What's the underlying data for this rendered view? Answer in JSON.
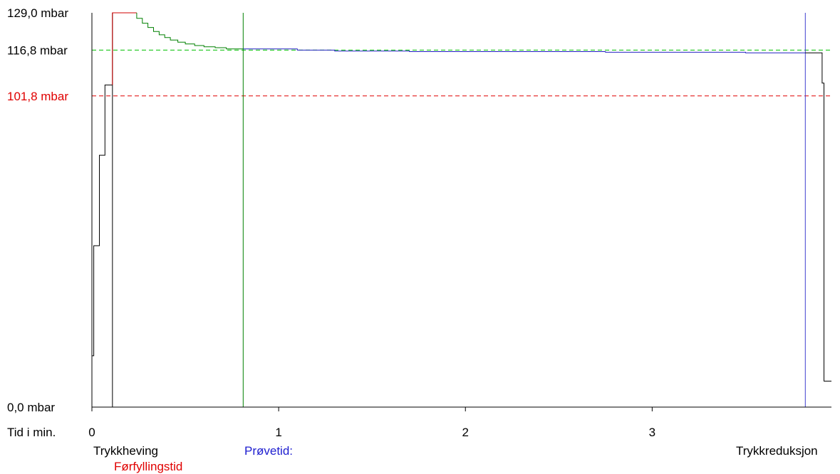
{
  "chart_data": {
    "type": "line",
    "y_axis": {
      "ticks": [
        {
          "value": 129.0,
          "label": "129,0 mbar",
          "color": "#000000"
        },
        {
          "value": 116.8,
          "label": "116,8 mbar",
          "color": "#000000"
        },
        {
          "value": 101.8,
          "label": "101,8 mbar",
          "color": "#e00000"
        },
        {
          "value": 0.0,
          "label": "0,0 mbar",
          "color": "#000000"
        }
      ],
      "range": [
        0,
        129.0
      ]
    },
    "x_axis": {
      "label": "Tid i min.",
      "ticks": [
        {
          "value": 0,
          "label": "0"
        },
        {
          "value": 1,
          "label": "1"
        },
        {
          "value": 2,
          "label": "2"
        },
        {
          "value": 3,
          "label": "3"
        }
      ],
      "range": [
        0,
        3.96
      ]
    },
    "phase_labels": {
      "trykkheving": "Trykkheving",
      "forfyllingstid": "Førfyllingstid",
      "provetid": "Prøvetid:",
      "trykkreduksjon": "Trykkreduksjon"
    },
    "reference_lines": [
      {
        "value": 116.8,
        "color": "#00c000"
      },
      {
        "value": 101.8,
        "color": "#e00000"
      }
    ],
    "phase_markers": [
      {
        "x": 0.11,
        "color": "#000000"
      },
      {
        "x": 0.81,
        "color": "#008000"
      },
      {
        "x": 3.82,
        "color": "#4040d0"
      }
    ],
    "series": [
      {
        "phase": "trykkheving",
        "color": "#000000",
        "step": true,
        "points": [
          [
            0.0,
            16.8
          ],
          [
            0.01,
            16.8
          ],
          [
            0.01,
            52.8
          ],
          [
            0.04,
            52.8
          ],
          [
            0.04,
            82.4
          ],
          [
            0.07,
            82.4
          ],
          [
            0.07,
            105.4
          ],
          [
            0.11,
            105.4
          ]
        ]
      },
      {
        "phase": "forfyllingstid",
        "color": "#d00000",
        "step": true,
        "points": [
          [
            0.11,
            105.4
          ],
          [
            0.11,
            129.0
          ],
          [
            0.24,
            129.0
          ]
        ]
      },
      {
        "phase": "stabilisering",
        "color": "#008000",
        "step": true,
        "points": [
          [
            0.24,
            129.0
          ],
          [
            0.24,
            127.2
          ],
          [
            0.27,
            127.2
          ],
          [
            0.27,
            125.6
          ],
          [
            0.3,
            125.6
          ],
          [
            0.3,
            124.2
          ],
          [
            0.33,
            124.2
          ],
          [
            0.33,
            122.9
          ],
          [
            0.36,
            122.9
          ],
          [
            0.36,
            121.8
          ],
          [
            0.39,
            121.8
          ],
          [
            0.39,
            120.9
          ],
          [
            0.42,
            120.9
          ],
          [
            0.42,
            120.1
          ],
          [
            0.46,
            120.1
          ],
          [
            0.46,
            119.4
          ],
          [
            0.5,
            119.4
          ],
          [
            0.5,
            118.8
          ],
          [
            0.55,
            118.8
          ],
          [
            0.55,
            118.3
          ],
          [
            0.6,
            118.3
          ],
          [
            0.6,
            117.9
          ],
          [
            0.66,
            117.9
          ],
          [
            0.66,
            117.6
          ],
          [
            0.72,
            117.6
          ],
          [
            0.72,
            117.2
          ],
          [
            0.81,
            117.2
          ]
        ]
      },
      {
        "phase": "provetid",
        "color": "#2020c0",
        "step": true,
        "points": [
          [
            0.81,
            117.2
          ],
          [
            1.1,
            117.2
          ],
          [
            1.1,
            116.8
          ],
          [
            1.3,
            116.8
          ],
          [
            1.3,
            116.5
          ],
          [
            1.7,
            116.5
          ],
          [
            1.7,
            116.3
          ],
          [
            2.75,
            116.3
          ],
          [
            2.75,
            116.1
          ],
          [
            3.5,
            116.1
          ],
          [
            3.5,
            115.9
          ],
          [
            3.82,
            115.9
          ]
        ]
      },
      {
        "phase": "trykkreduksjon",
        "color": "#000000",
        "step": true,
        "points": [
          [
            3.82,
            115.9
          ],
          [
            3.91,
            115.9
          ],
          [
            3.91,
            106.0
          ],
          [
            3.92,
            106.0
          ],
          [
            3.92,
            8.5
          ],
          [
            3.96,
            8.5
          ]
        ]
      }
    ]
  }
}
